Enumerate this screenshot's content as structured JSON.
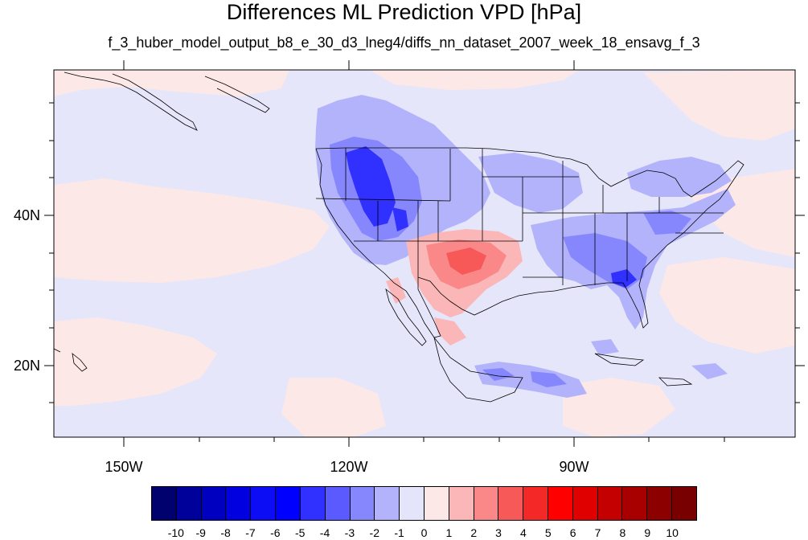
{
  "map": {
    "title": "Differences ML Prediction VPD [hPa]",
    "subtitle": "f_3_huber_model_output_b8_e_30_d3_lneg4/diffs_nn_dataset_2007_week_18_ensavg_f_3",
    "lon_labels": [
      "150W",
      "120W",
      "90W"
    ],
    "lat_labels": [
      "40N",
      "20N"
    ],
    "colorbar": {
      "labels": [
        "-10",
        "-9",
        "-8",
        "-7",
        "-6",
        "-5",
        "-4",
        "-3",
        "-2",
        "-1",
        "0",
        "1",
        "2",
        "3",
        "4",
        "5",
        "6",
        "7",
        "8",
        "9",
        "10"
      ],
      "colors": [
        "#00006e",
        "#00009b",
        "#0000c0",
        "#0000e0",
        "#0d0df5",
        "#0000ff",
        "#3030ff",
        "#5a5aff",
        "#8787fd",
        "#b3b3fc",
        "#e4e4fb",
        "#fde8e8",
        "#fbb7b7",
        "#fb8888",
        "#f75858",
        "#f52828",
        "#ff0000",
        "#e00000",
        "#c40000",
        "#a80000",
        "#8c0000",
        "#780000"
      ]
    },
    "colors": {
      "background_field": "#e6e6fa",
      "positive_light": "#fde8e8",
      "blue_light": "#b3b3fc",
      "blue_mid": "#8787fd",
      "blue_dark": "#3030ff",
      "red_light": "#fbb7b7",
      "red_mid": "#fb8888",
      "red_dark": "#f75858"
    }
  }
}
